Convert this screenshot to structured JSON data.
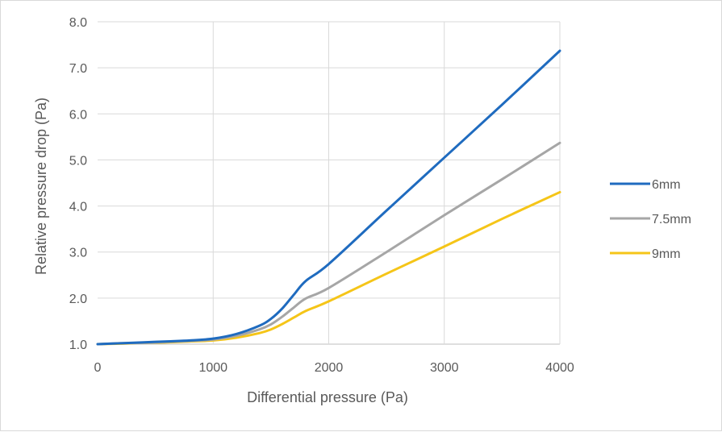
{
  "chart_data": {
    "type": "line",
    "title": "",
    "xlabel": "Differential pressure (Pa)",
    "ylabel": "Relative pressure drop (Pa)",
    "xlim": [
      0,
      4000
    ],
    "ylim": [
      1.0,
      8.0
    ],
    "x_ticks": [
      "0",
      "1000",
      "2000",
      "3000",
      "4000"
    ],
    "y_ticks": [
      "1.0",
      "2.0",
      "3.0",
      "4.0",
      "5.0",
      "6.0",
      "7.0",
      "8.0"
    ],
    "grid": "both",
    "legend_position": "right",
    "x": [
      0,
      200,
      400,
      600,
      800,
      1000,
      1200,
      1400,
      1500,
      1600,
      1700,
      1800,
      2000,
      2500,
      3000,
      3500,
      4000
    ],
    "series": [
      {
        "name": "6mm",
        "color": "#1f6bbf",
        "values": [
          1.0,
          1.02,
          1.04,
          1.06,
          1.08,
          1.12,
          1.22,
          1.4,
          1.55,
          1.78,
          2.08,
          2.37,
          2.74,
          3.9,
          5.05,
          6.2,
          7.37
        ]
      },
      {
        "name": "7.5mm",
        "color": "#a6a6a6",
        "values": [
          1.0,
          1.02,
          1.03,
          1.05,
          1.07,
          1.1,
          1.18,
          1.32,
          1.43,
          1.6,
          1.8,
          1.99,
          2.22,
          3.0,
          3.8,
          4.58,
          5.37
        ]
      },
      {
        "name": "9mm",
        "color": "#f5c518",
        "values": [
          1.0,
          1.01,
          1.03,
          1.04,
          1.06,
          1.08,
          1.14,
          1.24,
          1.32,
          1.44,
          1.58,
          1.72,
          1.93,
          2.53,
          3.12,
          3.72,
          4.3
        ]
      }
    ]
  }
}
